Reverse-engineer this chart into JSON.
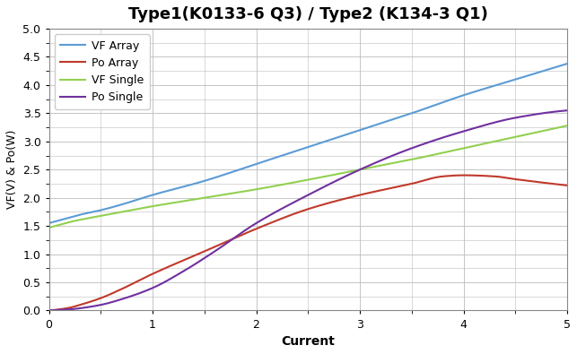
{
  "title": "Type1(K0133-6 Q3) / Type2 (K134-3 Q1)",
  "xlabel": "Current",
  "ylabel": "VF(V) & Po(W)",
  "xlim": [
    0,
    5
  ],
  "ylim": [
    0,
    5
  ],
  "yticks": [
    0,
    0.5,
    1.0,
    1.5,
    2.0,
    2.5,
    3.0,
    3.5,
    4.0,
    4.5,
    5.0
  ],
  "xticks": [
    0,
    1,
    2,
    3,
    4,
    5
  ],
  "legend": [
    {
      "label": "VF Array",
      "color": "#5B9BD5"
    },
    {
      "label": "Po Array",
      "color": "#C0392B"
    },
    {
      "label": "VF Single",
      "color": "#92D050"
    },
    {
      "label": "Po Single",
      "color": "#7030A0"
    }
  ],
  "background_color": "#FFFFFF",
  "grid_color": "#BBBBBB",
  "title_fontsize": 13,
  "axis_label_fontsize": 10,
  "tick_fontsize": 9,
  "legend_fontsize": 9,
  "vf_array_pts_x": [
    0.0,
    0.1,
    0.2,
    0.3,
    0.5,
    0.7,
    1.0,
    1.5,
    2.0,
    2.5,
    3.0,
    3.5,
    4.0,
    4.5,
    5.0
  ],
  "vf_array_pts_y": [
    1.55,
    1.6,
    1.65,
    1.7,
    1.78,
    1.88,
    2.05,
    2.3,
    2.6,
    2.9,
    3.2,
    3.5,
    3.82,
    4.1,
    4.38
  ],
  "vf_single_pts_x": [
    0.0,
    0.1,
    0.2,
    0.3,
    0.5,
    0.7,
    1.0,
    1.5,
    2.0,
    2.5,
    3.0,
    3.5,
    4.0,
    4.5,
    5.0
  ],
  "vf_single_pts_y": [
    1.47,
    1.52,
    1.57,
    1.61,
    1.68,
    1.75,
    1.85,
    2.0,
    2.15,
    2.32,
    2.5,
    2.68,
    2.88,
    3.08,
    3.28
  ],
  "po_array_pts_x": [
    0.0,
    0.1,
    0.2,
    0.3,
    0.5,
    0.7,
    1.0,
    1.5,
    2.0,
    2.5,
    3.0,
    3.5,
    3.8,
    4.0,
    4.3,
    4.5,
    5.0
  ],
  "po_array_pts_y": [
    0.0,
    0.02,
    0.05,
    0.1,
    0.22,
    0.38,
    0.65,
    1.05,
    1.45,
    1.8,
    2.05,
    2.25,
    2.38,
    2.4,
    2.38,
    2.33,
    2.22
  ],
  "po_single_pts_x": [
    0.0,
    0.1,
    0.2,
    0.3,
    0.5,
    0.7,
    1.0,
    1.3,
    1.6,
    2.0,
    2.5,
    3.0,
    3.5,
    4.0,
    4.5,
    5.0
  ],
  "po_single_pts_y": [
    0.0,
    0.01,
    0.02,
    0.04,
    0.1,
    0.2,
    0.4,
    0.7,
    1.05,
    1.55,
    2.05,
    2.5,
    2.88,
    3.18,
    3.42,
    3.55
  ]
}
